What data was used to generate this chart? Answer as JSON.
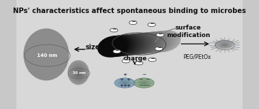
{
  "title": "NPs' characteristics affect spontaneous binding to microbes",
  "title_fontsize": 7.2,
  "title_fontweight": "bold",
  "bg_outer": "#c8c8c8",
  "bg_inner": "#e8e8e8",
  "panel_color": "#d8d8d8",
  "panel_edge_color": "#aaaaaa",
  "large_sphere_color_dark": "#707070",
  "large_sphere_color_light": "#b0b0b0",
  "small_sphere_color": "#909090",
  "text_color": "#111111",
  "size_label": "size",
  "large_nm_label": "140 nm",
  "small_nm_label": "30 nm",
  "charge_label": "charge",
  "surface_mod_label": "surface\nmodification",
  "peg_label": "PEG/PEtOx",
  "outer_border_color": "#555555"
}
